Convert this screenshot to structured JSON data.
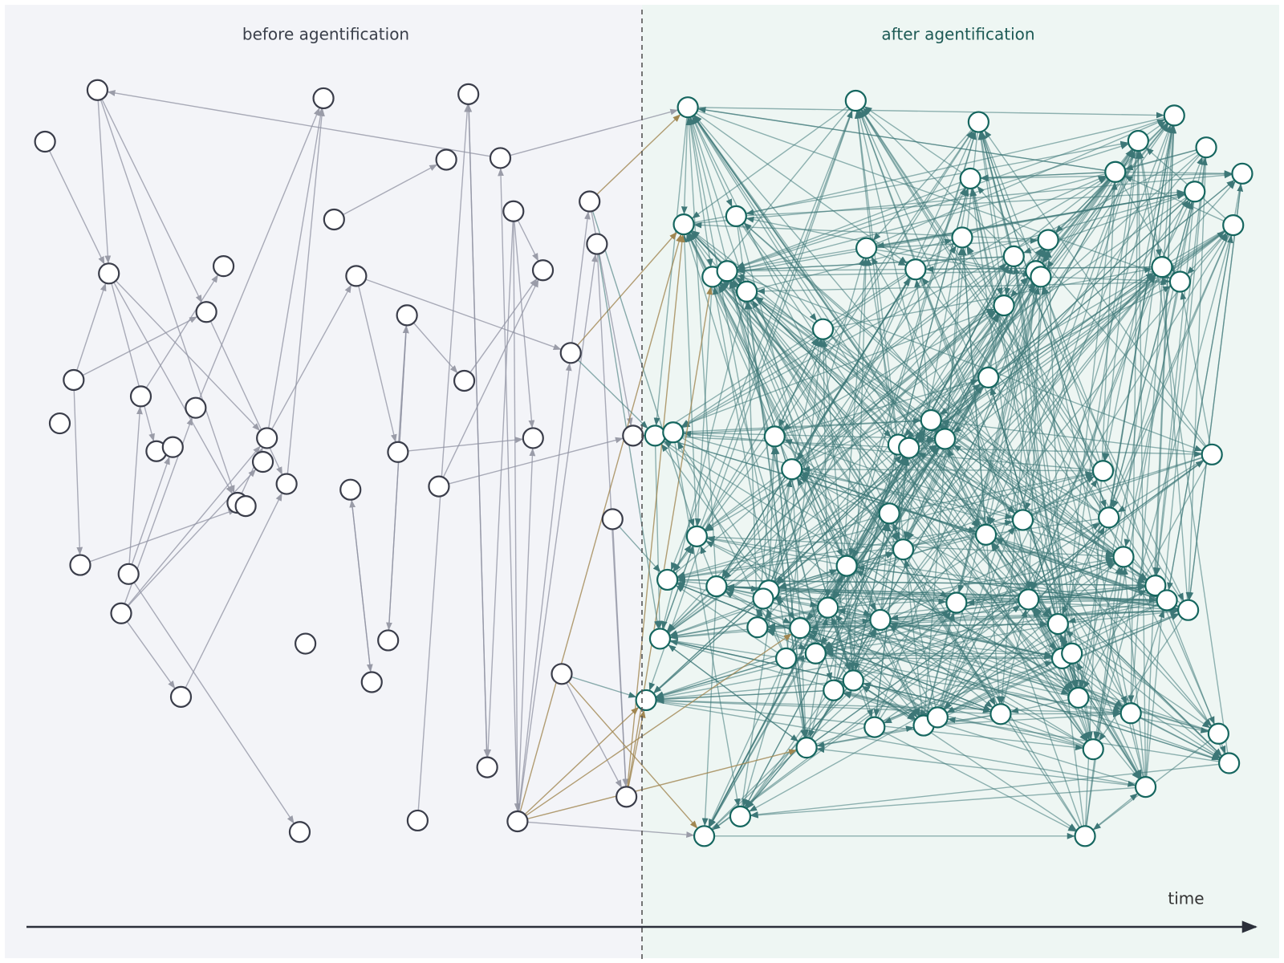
{
  "labels": {
    "before": "before agentification",
    "after": "after agentification",
    "axis": "time"
  }
}
